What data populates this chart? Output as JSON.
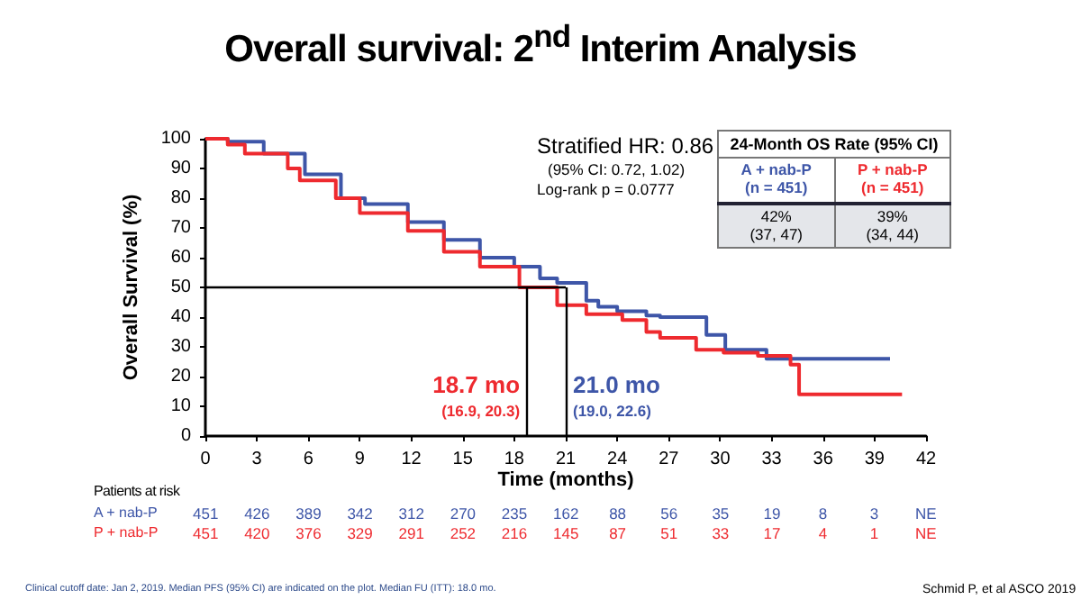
{
  "chart_data": {
    "type": "step",
    "title": "Overall survival: 2$^{nd}$ Interim Analysis",
    "xlabel": "Time (months)",
    "ylabel": "Overall Survival (%)",
    "xlim": [
      0,
      42
    ],
    "xticks": [
      0,
      3,
      6,
      9,
      12,
      15,
      18,
      21,
      24,
      27,
      30,
      33,
      36,
      39,
      42
    ],
    "ylim": [
      0,
      100
    ],
    "yticks": [
      0,
      10,
      20,
      30,
      40,
      50,
      60,
      70,
      80,
      90,
      100
    ],
    "grid": false,
    "legend": false,
    "series": [
      {
        "name": "A + nab-P",
        "color": "#3e56a8",
        "x": [
          0,
          1.3,
          3.4,
          5.8,
          7.9,
          9.3,
          11.8,
          13.9,
          16,
          18,
          19.5,
          20.5,
          22.2,
          22.9,
          24,
          25.7,
          26.5,
          29.2,
          30.3,
          32.7,
          39.9
        ],
        "values": [
          100,
          99,
          95,
          88,
          80,
          78,
          72,
          66,
          60,
          57,
          53,
          51.5,
          45.5,
          43.5,
          42,
          40.5,
          40,
          34,
          29,
          26,
          26
        ]
      },
      {
        "name": "P + nab-P",
        "color": "#ee2a2f",
        "x": [
          0,
          1.3,
          2.3,
          4.8,
          5.5,
          7.6,
          9,
          11.8,
          13.9,
          16,
          18.3,
          20.5,
          22.2,
          24.3,
          25.7,
          26.5,
          28.6,
          30.2,
          32.2,
          34.1,
          34.6,
          40.6
        ],
        "values": [
          100,
          98,
          95,
          90,
          86,
          80,
          75,
          69,
          62,
          57,
          50,
          44,
          41,
          39,
          35,
          33,
          29,
          28,
          27,
          24,
          14,
          14
        ]
      }
    ],
    "ref_lines": [
      {
        "axis": "y",
        "value": 50,
        "color": "#000000"
      },
      {
        "axis": "x",
        "value": 18.7,
        "color": "#000000"
      },
      {
        "axis": "x",
        "value": 21.0,
        "color": "#000000"
      }
    ],
    "annotations": [
      "Stratified HR: 0.86",
      "(95% CI: 0.72, 1.02)",
      "Log-rank p = 0.0777",
      "24-Month OS Rate (95% CI)",
      "(n = 451)",
      "(n = 451)",
      "42%",
      "(37, 47)",
      "39%",
      "(34, 44)",
      "18.7 mo",
      "(16.9, 20.3)",
      "21.0 mo",
      "(19.0, 22.6)",
      "Patients  at risk",
      "451 426 389 342 312 270 235 162 88 56 35 19 8 3 NE",
      "451 420 376 329 291 252 216 145 87 51 33 17 4 1 NE",
      "Clinical cutoff date: Jan 2, 2019. Median PFS (95% CI) are indicated on the plot. Median FU (ITT): 18.0 mo.",
      "Schmid P, et al ASCO 2019"
    ]
  }
}
